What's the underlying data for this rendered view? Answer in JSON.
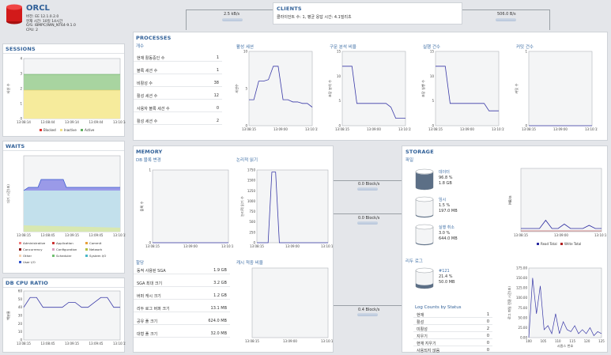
{
  "db": {
    "name": "ORCL",
    "lines": [
      "버전: EE 12.1.0.2.0",
      "현재 시간: 10일 14시간",
      "O/S: IBMPC/WIN_NT64-9.1.0",
      "CPU: 2"
    ]
  },
  "clients": {
    "title": "CLIENTS",
    "desc": "클라이언트 수: 1,   평균 응답 시간: 4.1밀리초",
    "left_rate": "2.5 kB/s",
    "right_rate": "506.0 B/s"
  },
  "sessions": {
    "title": "SESSIONS",
    "ylabel": "세션 수",
    "yticks": [
      "4",
      "3",
      "2",
      "1",
      "0"
    ],
    "xticks": [
      "13:08:14",
      "13:08:44",
      "13:09:14",
      "13:09:44",
      "13:10:14"
    ],
    "legend": [
      {
        "label": "Blocked",
        "color": "#e0312d"
      },
      {
        "label": "Inactive",
        "color": "#f1e089"
      },
      {
        "label": "Active",
        "color": "#60b060"
      }
    ]
  },
  "waits": {
    "title": "WAITS",
    "ylabel": "대기 시간(초)",
    "xticks": [
      "13:08:15",
      "13:08:45",
      "13:09:15",
      "13:09:45",
      "13:10:15"
    ],
    "legend": [
      {
        "label": "Administrative",
        "color": "#f08080"
      },
      {
        "label": "Application",
        "color": "#cc3333"
      },
      {
        "label": "Commit",
        "color": "#e8a13a"
      },
      {
        "label": "Concurrency",
        "color": "#8b1a1a"
      },
      {
        "label": "Configuration",
        "color": "#d8a0c0"
      },
      {
        "label": "Network",
        "color": "#b0c040"
      },
      {
        "label": "Other",
        "color": "#f4d0b0"
      },
      {
        "label": "Scheduler",
        "color": "#70c070"
      },
      {
        "label": "System I/O",
        "color": "#4ab8c8"
      },
      {
        "label": "User I/O",
        "color": "#3355cc"
      }
    ]
  },
  "cpu": {
    "title": "DB CPU RATIO",
    "ylabel": "백분율",
    "yticks": [
      "60",
      "50",
      "40",
      "30",
      "20",
      "10",
      "0"
    ],
    "xticks": [
      "13:08:15",
      "13:08:45",
      "13:09:15",
      "13:09:45",
      "13:10:15"
    ]
  },
  "processes": {
    "title": "PROCESSES",
    "count_title": "개수",
    "rows": [
      {
        "k": "현재 활동중인 수",
        "v": "1"
      },
      {
        "k": "블록 세션 수",
        "v": "1"
      },
      {
        "k": "비활성 수",
        "v": "38"
      },
      {
        "k": "활성 세션 수",
        "v": "12"
      },
      {
        "k": "사용자 블록 세션 수",
        "v": "0"
      },
      {
        "k": "활성 세션 수",
        "v": "2"
      }
    ],
    "charts": [
      {
        "title": "활성 세션",
        "ylabel": "세션수",
        "yticks": [
          "10",
          "5",
          "0"
        ]
      },
      {
        "title": "구문 분석 비율",
        "ylabel": "초당 분석 수",
        "yticks": [
          "15",
          "10",
          "5",
          "0"
        ]
      },
      {
        "title": "실행 건수",
        "ylabel": "초당 실행 수",
        "yticks": [
          "15",
          "10",
          "5",
          "0"
        ]
      },
      {
        "title": "커밋 건수",
        "ylabel": "커밋 수",
        "yticks": [
          "1",
          "0"
        ]
      }
    ],
    "xticks": [
      "13:08:15",
      "13:09:00",
      "13:10:15"
    ]
  },
  "memory": {
    "title": "MEMORY",
    "db_block_title": "DB 블록 변경",
    "db_block_ylabel": "블록 수",
    "db_block_yticks": [
      "1",
      "0"
    ],
    "logical_title": "논리적 읽기",
    "logical_ylabel": "논리적 읽기 수",
    "logical_yticks": [
      "1750",
      "1500",
      "1250",
      "1000",
      "750",
      "500",
      "250",
      "0"
    ],
    "usage_title": "할당",
    "usage_rows": [
      {
        "k": "동적 사용된 SGA",
        "v": "1.9 GB"
      },
      {
        "k": "SGA 최대 크기",
        "v": "3.2 GB"
      },
      {
        "k": "버퍼 캐시 크기",
        "v": "1.2 GB"
      },
      {
        "k": "리두 로그 버퍼 크기",
        "v": "13.1 MB"
      },
      {
        "k": "공유 풀 크기",
        "v": "624.0 MB"
      },
      {
        "k": "대형 풀 크기",
        "v": "32.0 MB"
      }
    ],
    "hit_title": "캐시 적중 비율",
    "xticks": [
      "13:08:15",
      "13:09:00",
      "13:10:15"
    ]
  },
  "flows": {
    "block1": "0.0 Block/s",
    "block2": "0.0 Block/s",
    "block3": "0.4 Block/s"
  },
  "storage": {
    "title": "STORAGE",
    "files_title": "파일",
    "cylinders": [
      {
        "name": "데이터",
        "pct": "96.8 %",
        "size": "1.8 GB",
        "fill": 0.968
      },
      {
        "name": "임시",
        "pct": "1.5 %",
        "size": "197.0 MB",
        "fill": 0.015
      },
      {
        "name": "실행 취소",
        "pct": "3.0 %",
        "size": "644.0 MB",
        "fill": 0.03
      }
    ],
    "redo_title": "리두 로그",
    "redo": {
      "name": "#121",
      "pct": "21.4 %",
      "size": "50.0 MB",
      "fill": 0.214
    },
    "log_counts_title": "Log Counts by Status",
    "log_counts": [
      {
        "k": "현재",
        "v": "1"
      },
      {
        "k": "활성",
        "v": "0"
      },
      {
        "k": "미활성",
        "v": "2"
      },
      {
        "k": "지우기",
        "v": "0"
      },
      {
        "k": "현재 지우기",
        "v": "0"
      },
      {
        "k": "사용되지 않음",
        "v": "0"
      }
    ],
    "io_ylabel": "MB/초",
    "io_legend": [
      {
        "label": "Read Total",
        "color": "#2a2aa0"
      },
      {
        "label": "Write Total",
        "color": "#b02020"
      }
    ],
    "io_xticks": [
      "13:08:15",
      "13:09:00",
      "13:10:15"
    ],
    "log_ylabel": "로그 파일 전환 시간(초)",
    "log_yticks": [
      "175.00",
      "150.00",
      "125.00",
      "100.00",
      "75.00",
      "50.00",
      "25.00",
      "0.00"
    ],
    "log_xticks": [
      "100",
      "105",
      "110",
      "115",
      "120",
      "125"
    ],
    "log_xlabel": "시퀀스 번호"
  }
}
